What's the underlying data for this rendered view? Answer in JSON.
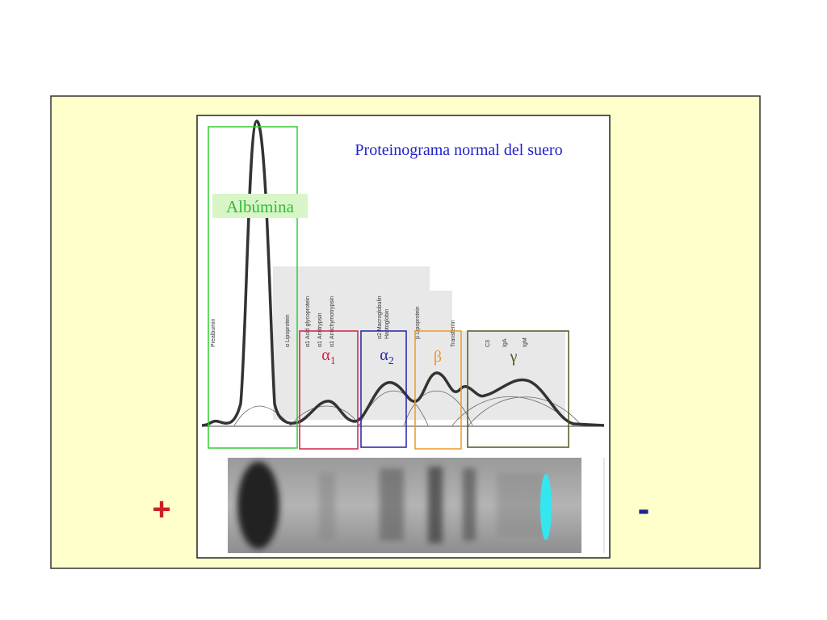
{
  "title": "Proteinograma normal del suero",
  "fractions": [
    {
      "label": "Albúmina"
    },
    {
      "symbol": "α",
      "sub": "1"
    },
    {
      "symbol": "α",
      "sub": "2"
    },
    {
      "symbol": "β"
    },
    {
      "symbol": "γ"
    }
  ],
  "proteins": [
    "Prealbumin",
    "α Lipoprotein",
    "α1 Acid glycoprotein",
    "α1 Antitrypsin",
    "α1 Antichymotrypsin",
    "α2 Macroglobulin",
    "Haptoglobin",
    "β Lipoprotein",
    "Transferrin",
    "C3",
    "IgA",
    "IgM"
  ],
  "poles": {
    "positive": "+",
    "negative": "-"
  }
}
